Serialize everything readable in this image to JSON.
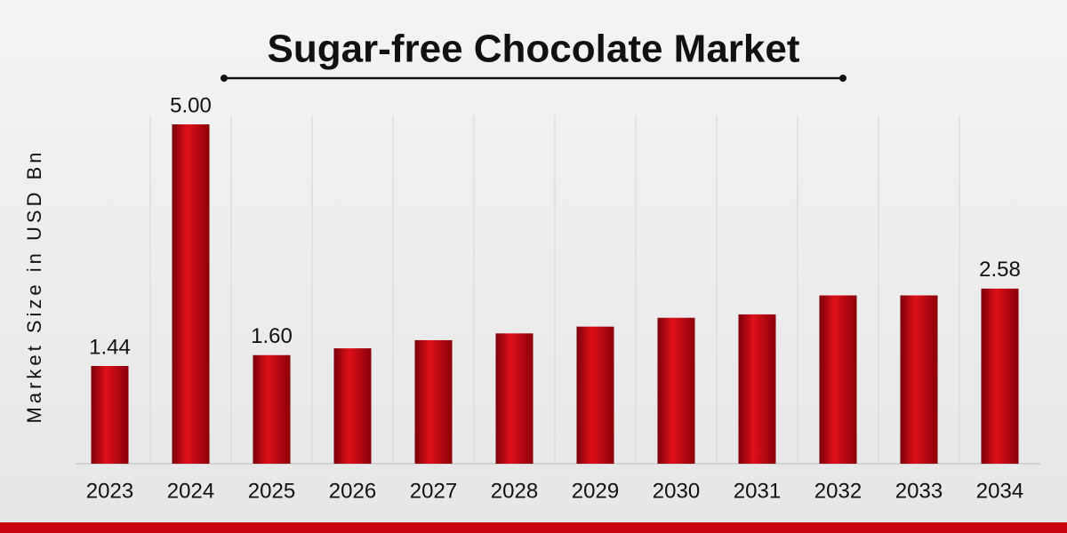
{
  "chart_data": {
    "type": "bar",
    "title": "Sugar-free Chocolate Market",
    "y_label": "Market Size in USD Bn",
    "categories": [
      "2023",
      "2024",
      "2025",
      "2026",
      "2027",
      "2028",
      "2029",
      "2030",
      "2031",
      "2032",
      "2033",
      "2034"
    ],
    "values": [
      1.44,
      5.0,
      1.6,
      1.7,
      1.82,
      1.92,
      2.02,
      2.15,
      2.2,
      2.48,
      2.48,
      2.58
    ],
    "value_labels": [
      "1.44",
      "5.00",
      "1.60",
      null,
      null,
      null,
      null,
      null,
      null,
      null,
      null,
      "2.58"
    ],
    "color": "#c8050f"
  }
}
